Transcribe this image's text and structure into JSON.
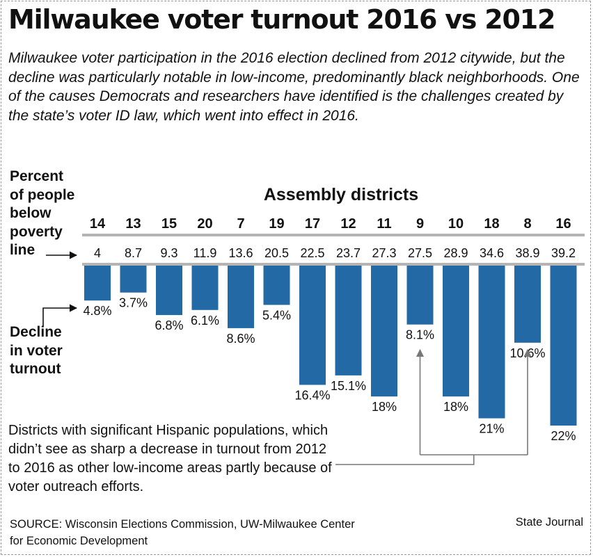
{
  "title": "Milwaukee voter turnout 2016 vs 2012",
  "subtitle": "Milwaukee voter participation in the 2016 election declined from 2012 citywide, but the decline was particularly notable in low-income, predominantly black neighborhoods. One of the causes Democrats and researchers have identified is the challenges created by the state’s voter ID law, which went into effect in 2016.",
  "labels": {
    "poverty_lines": [
      "Percent",
      "of people",
      "below",
      "poverty",
      "line"
    ],
    "decline_lines": [
      "Decline",
      "in voter",
      "turnout"
    ],
    "districts_heading": "Assembly districts"
  },
  "note": "Districts with significant Hispanic populations, which didn’t see as sharp a decrease in turnout from 2012 to 2016 as other low-income areas partly because of voter outreach efforts.",
  "source_lines": [
    "SOURCE: Wisconsin Elections Commission, UW-Milwaukee Center",
    "for Economic Development"
  ],
  "credit": "State Journal",
  "colors": {
    "bar": "#2369a6",
    "rule": "#b4b4b4",
    "arrow": "#777777",
    "text": "#111111"
  },
  "chart_data": {
    "type": "bar",
    "title": "Assembly districts",
    "xlabel": "Assembly districts",
    "ylabel": "Decline in voter turnout",
    "ylim": [
      0,
      22
    ],
    "grid": false,
    "orientation": "hanging-down",
    "categories": [
      "14",
      "13",
      "15",
      "20",
      "7",
      "19",
      "17",
      "12",
      "11",
      "9",
      "10",
      "18",
      "8",
      "16"
    ],
    "poverty_percent_labels": [
      "4",
      "8.7",
      "9.3",
      "11.9",
      "13.6",
      "20.5",
      "22.5",
      "23.7",
      "27.3",
      "27.5",
      "28.9",
      "34.6",
      "38.9",
      "39.2"
    ],
    "series": [
      {
        "name": "Decline in voter turnout",
        "values": [
          4.8,
          3.7,
          6.8,
          6.1,
          8.6,
          5.4,
          16.4,
          15.1,
          18,
          8.1,
          18,
          21,
          10.6,
          22
        ],
        "value_labels": [
          "4.8%",
          "3.7%",
          "6.8%",
          "6.1%",
          "8.6%",
          "5.4%",
          "16.4%",
          "15.1%",
          "18%",
          "8.1%",
          "18%",
          "21%",
          "10.6%",
          "22%"
        ]
      }
    ],
    "annotations": [
      {
        "text": "Districts with significant Hispanic populations, which didn’t see as sharp a decrease in turnout from 2012 to 2016 as other low-income areas partly because of voter outreach efforts.",
        "points_to": [
          "9",
          "8"
        ]
      }
    ]
  }
}
